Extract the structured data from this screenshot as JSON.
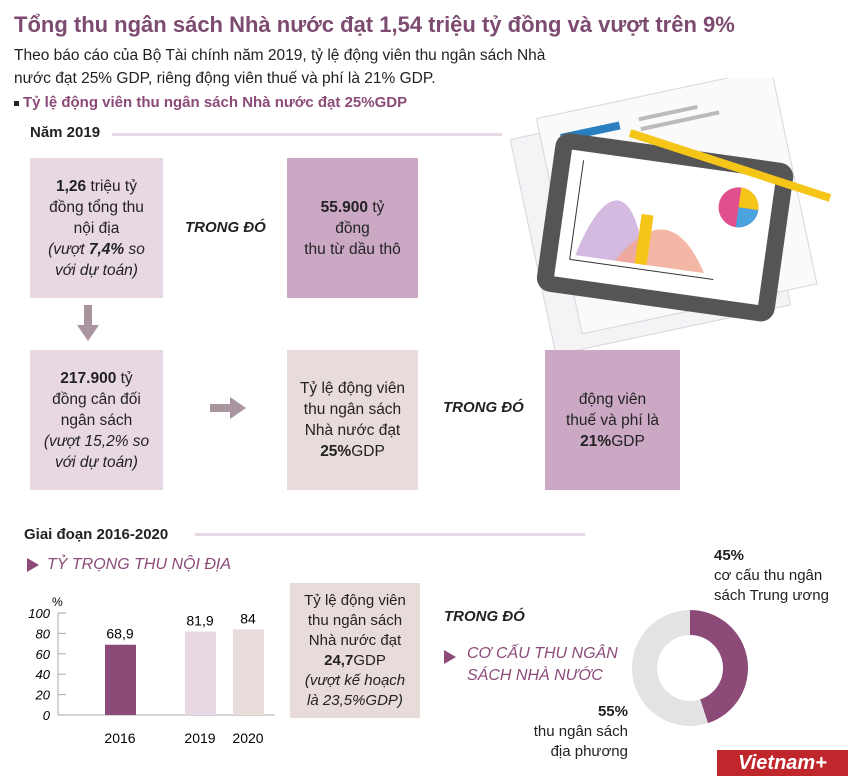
{
  "header": {
    "title": "Tổng thu ngân sách Nhà nước đạt 1,54 triệu tỷ đồng và vượt trên 9%",
    "subtitle_line1": "Theo báo cáo của Bộ Tài chính năm 2019, tỷ lệ động viên thu ngân sách Nhà",
    "subtitle_line2": "nước đạt 25% GDP, riêng động viên thuế và phí là 21% GDP.",
    "bullet": "Tỷ lệ động viên thu ngân sách Nhà nước đạt 25%GDP"
  },
  "year2019": {
    "heading": "Năm 2019",
    "box1": {
      "bold": "1,26",
      "l1": " triệu tỷ",
      "l2": "đồng tổng thu",
      "l3": "nội địa",
      "l4a": "(vượt ",
      "l4b": "7,4%",
      "l4c": " so",
      "l5": "với dự toán)"
    },
    "trong_do_1": "TRONG ĐÓ",
    "box2": {
      "bold": "55.900",
      "l1": " tỷ",
      "l2": "đồng",
      "l3": "thu từ dầu thô"
    },
    "box3": {
      "bold": "217.900",
      "l1": " tỷ",
      "l2": "đồng cân đối",
      "l3": "ngân sách",
      "l4": "(vượt 15,2% so",
      "l5": "với dự toán)"
    },
    "box4": {
      "l1": "Tỷ lệ động viên",
      "l2": "thu ngân sách",
      "l3": "Nhà nước đạt",
      "bold": "25%",
      "unit": "GDP"
    },
    "trong_do_2": "TRONG ĐÓ",
    "box5": {
      "l1": "động viên",
      "l2": "thuế và phí là",
      "bold": "21%",
      "unit": "GDP"
    }
  },
  "period": {
    "heading": "Giai đoạn 2016-2020",
    "bar_heading": "TỶ TRỌNG THU NỘI ĐỊA",
    "box6": {
      "l1": "Tỷ lệ động viên",
      "l2": "thu ngân sách",
      "l3": "Nhà nước đạt",
      "bold": "24,7",
      "unit": "GDP",
      "l5": "(vượt kế hoạch",
      "l6": "là 23,5%GDP)"
    },
    "trong_do": "TRONG ĐÓ",
    "donut_heading_1": "CƠ CẤU THU NGÂN",
    "donut_heading_2": "SÁCH NHÀ  NƯỚC"
  },
  "chart_data": [
    {
      "type": "bar",
      "title": "TỶ TRỌNG THU NỘI ĐỊA",
      "ylabel": "%",
      "ylim": [
        0,
        100
      ],
      "yticks": [
        "0",
        "20",
        "40",
        "60",
        "80",
        "100"
      ],
      "categories": [
        "2016",
        "2019",
        "2020"
      ],
      "values": [
        68.9,
        81.9,
        84
      ],
      "value_labels": [
        "68,9",
        "81,9",
        "84"
      ],
      "colors": [
        "#8b4a78",
        "#e8d8e4",
        "#e8dcda"
      ]
    },
    {
      "type": "pie",
      "title": "CƠ CẤU THU NGÂN SÁCH NHÀ  NƯỚC",
      "slices": [
        {
          "value": 45,
          "pct_label": "45%",
          "label_l1": "cơ cấu thu ngân",
          "label_l2": "sách Trung ương",
          "color": "#8b4a78"
        },
        {
          "value": 55,
          "pct_label": "55%",
          "label_l1": "thu ngân sách",
          "label_l2": "địa phương",
          "color": "#e3e3e3"
        }
      ]
    }
  ],
  "logo": "Vietnam+"
}
